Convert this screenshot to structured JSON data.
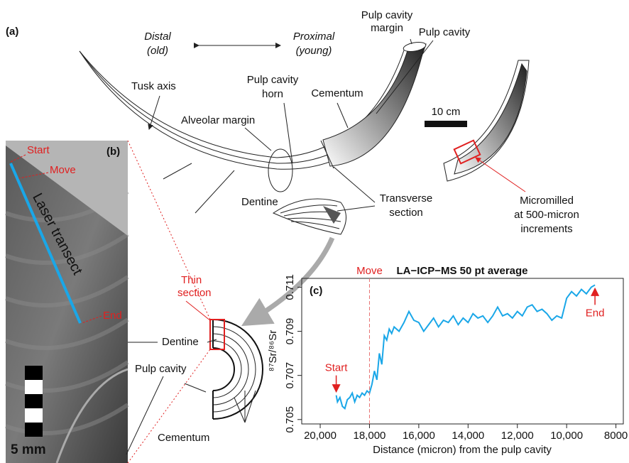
{
  "panel_a": {
    "label": "(a)",
    "distal": "Distal",
    "old": "(old)",
    "proximal": "Proximal",
    "young": "(young)",
    "pulp_cavity_margin": [
      "Pulp cavity",
      "margin"
    ],
    "pulp_cavity": "Pulp cavity",
    "pulp_cavity_horn": [
      "Pulp cavity",
      "horn"
    ],
    "cementum": "Cementum",
    "tusk_axis": "Tusk axis",
    "alveolar_margin": "Alveolar margin",
    "dentine": "Dentine",
    "scale": "10 cm",
    "transverse_section": [
      "Transverse",
      "section"
    ],
    "micromilled": [
      "Micromilled",
      "at 500-micron",
      "increments"
    ]
  },
  "panel_b": {
    "label": "(b)",
    "start": "Start",
    "move": "Move",
    "laser_transect": "Laser transect",
    "end": "End",
    "thin_section": [
      "Thin",
      "section"
    ],
    "dentine": "Dentine",
    "pulp_cavity": "Pulp cavity",
    "cementum": "Cementum",
    "scale": "5 mm"
  },
  "chart_data": {
    "type": "line",
    "panel_label": "(c)",
    "title": "LA−ICP−MS 50 pt average",
    "x_label": "Distance (micron) from the pulp cavity",
    "y_label": "⁸⁷Sr/⁸⁶Sr",
    "xlim": [
      20750,
      7700
    ],
    "ylim": [
      0.7048,
      0.7114
    ],
    "xticks": [
      {
        "value": 20000,
        "label": "20,000"
      },
      {
        "value": 18000,
        "label": "18,000"
      },
      {
        "value": 16000,
        "label": "16,000"
      },
      {
        "value": 14000,
        "label": "14,000"
      },
      {
        "value": 12000,
        "label": "12,000"
      },
      {
        "value": 10000,
        "label": "10,000"
      },
      8000
    ],
    "yticks": [
      0.705,
      0.707,
      0.709,
      0.711
    ],
    "x": [
      19350,
      19300,
      19200,
      19100,
      19000,
      18900,
      18800,
      18700,
      18600,
      18500,
      18400,
      18300,
      18200,
      18100,
      18000,
      17900,
      17800,
      17700,
      17600,
      17500,
      17400,
      17300,
      17200,
      17100,
      17000,
      16800,
      16600,
      16400,
      16200,
      16000,
      15800,
      15600,
      15400,
      15200,
      15000,
      14800,
      14600,
      14400,
      14200,
      14000,
      13800,
      13600,
      13400,
      13200,
      13000,
      12800,
      12600,
      12400,
      12200,
      12000,
      11800,
      11600,
      11400,
      11200,
      11000,
      10800,
      10600,
      10400,
      10200,
      10000,
      9800,
      9600,
      9400,
      9200,
      9000,
      8850
    ],
    "series": [
      {
        "color": "#1aa7e8",
        "values": [
          0.7061,
          0.7058,
          0.706,
          0.7056,
          0.7055,
          0.7059,
          0.706,
          0.7062,
          0.7058,
          0.7061,
          0.706,
          0.7062,
          0.7061,
          0.7063,
          0.7062,
          0.7066,
          0.7072,
          0.7068,
          0.708,
          0.7075,
          0.7088,
          0.7086,
          0.7091,
          0.7089,
          0.7092,
          0.709,
          0.7094,
          0.7099,
          0.7095,
          0.7094,
          0.709,
          0.7093,
          0.7096,
          0.7092,
          0.7095,
          0.7094,
          0.7097,
          0.7093,
          0.7096,
          0.7094,
          0.7098,
          0.7096,
          0.7097,
          0.7094,
          0.7097,
          0.7101,
          0.7097,
          0.7098,
          0.7096,
          0.7099,
          0.7097,
          0.7101,
          0.7102,
          0.7099,
          0.71,
          0.7098,
          0.7095,
          0.7097,
          0.7096,
          0.7105,
          0.7108,
          0.7106,
          0.7109,
          0.7107,
          0.711,
          0.7111
        ]
      }
    ],
    "annotations": [
      {
        "text": "Start",
        "x": 19350,
        "y": 0.7061
      },
      {
        "text": "Move",
        "x": 18000
      },
      {
        "text": "End",
        "x": 8850,
        "y": 0.7111
      }
    ]
  }
}
